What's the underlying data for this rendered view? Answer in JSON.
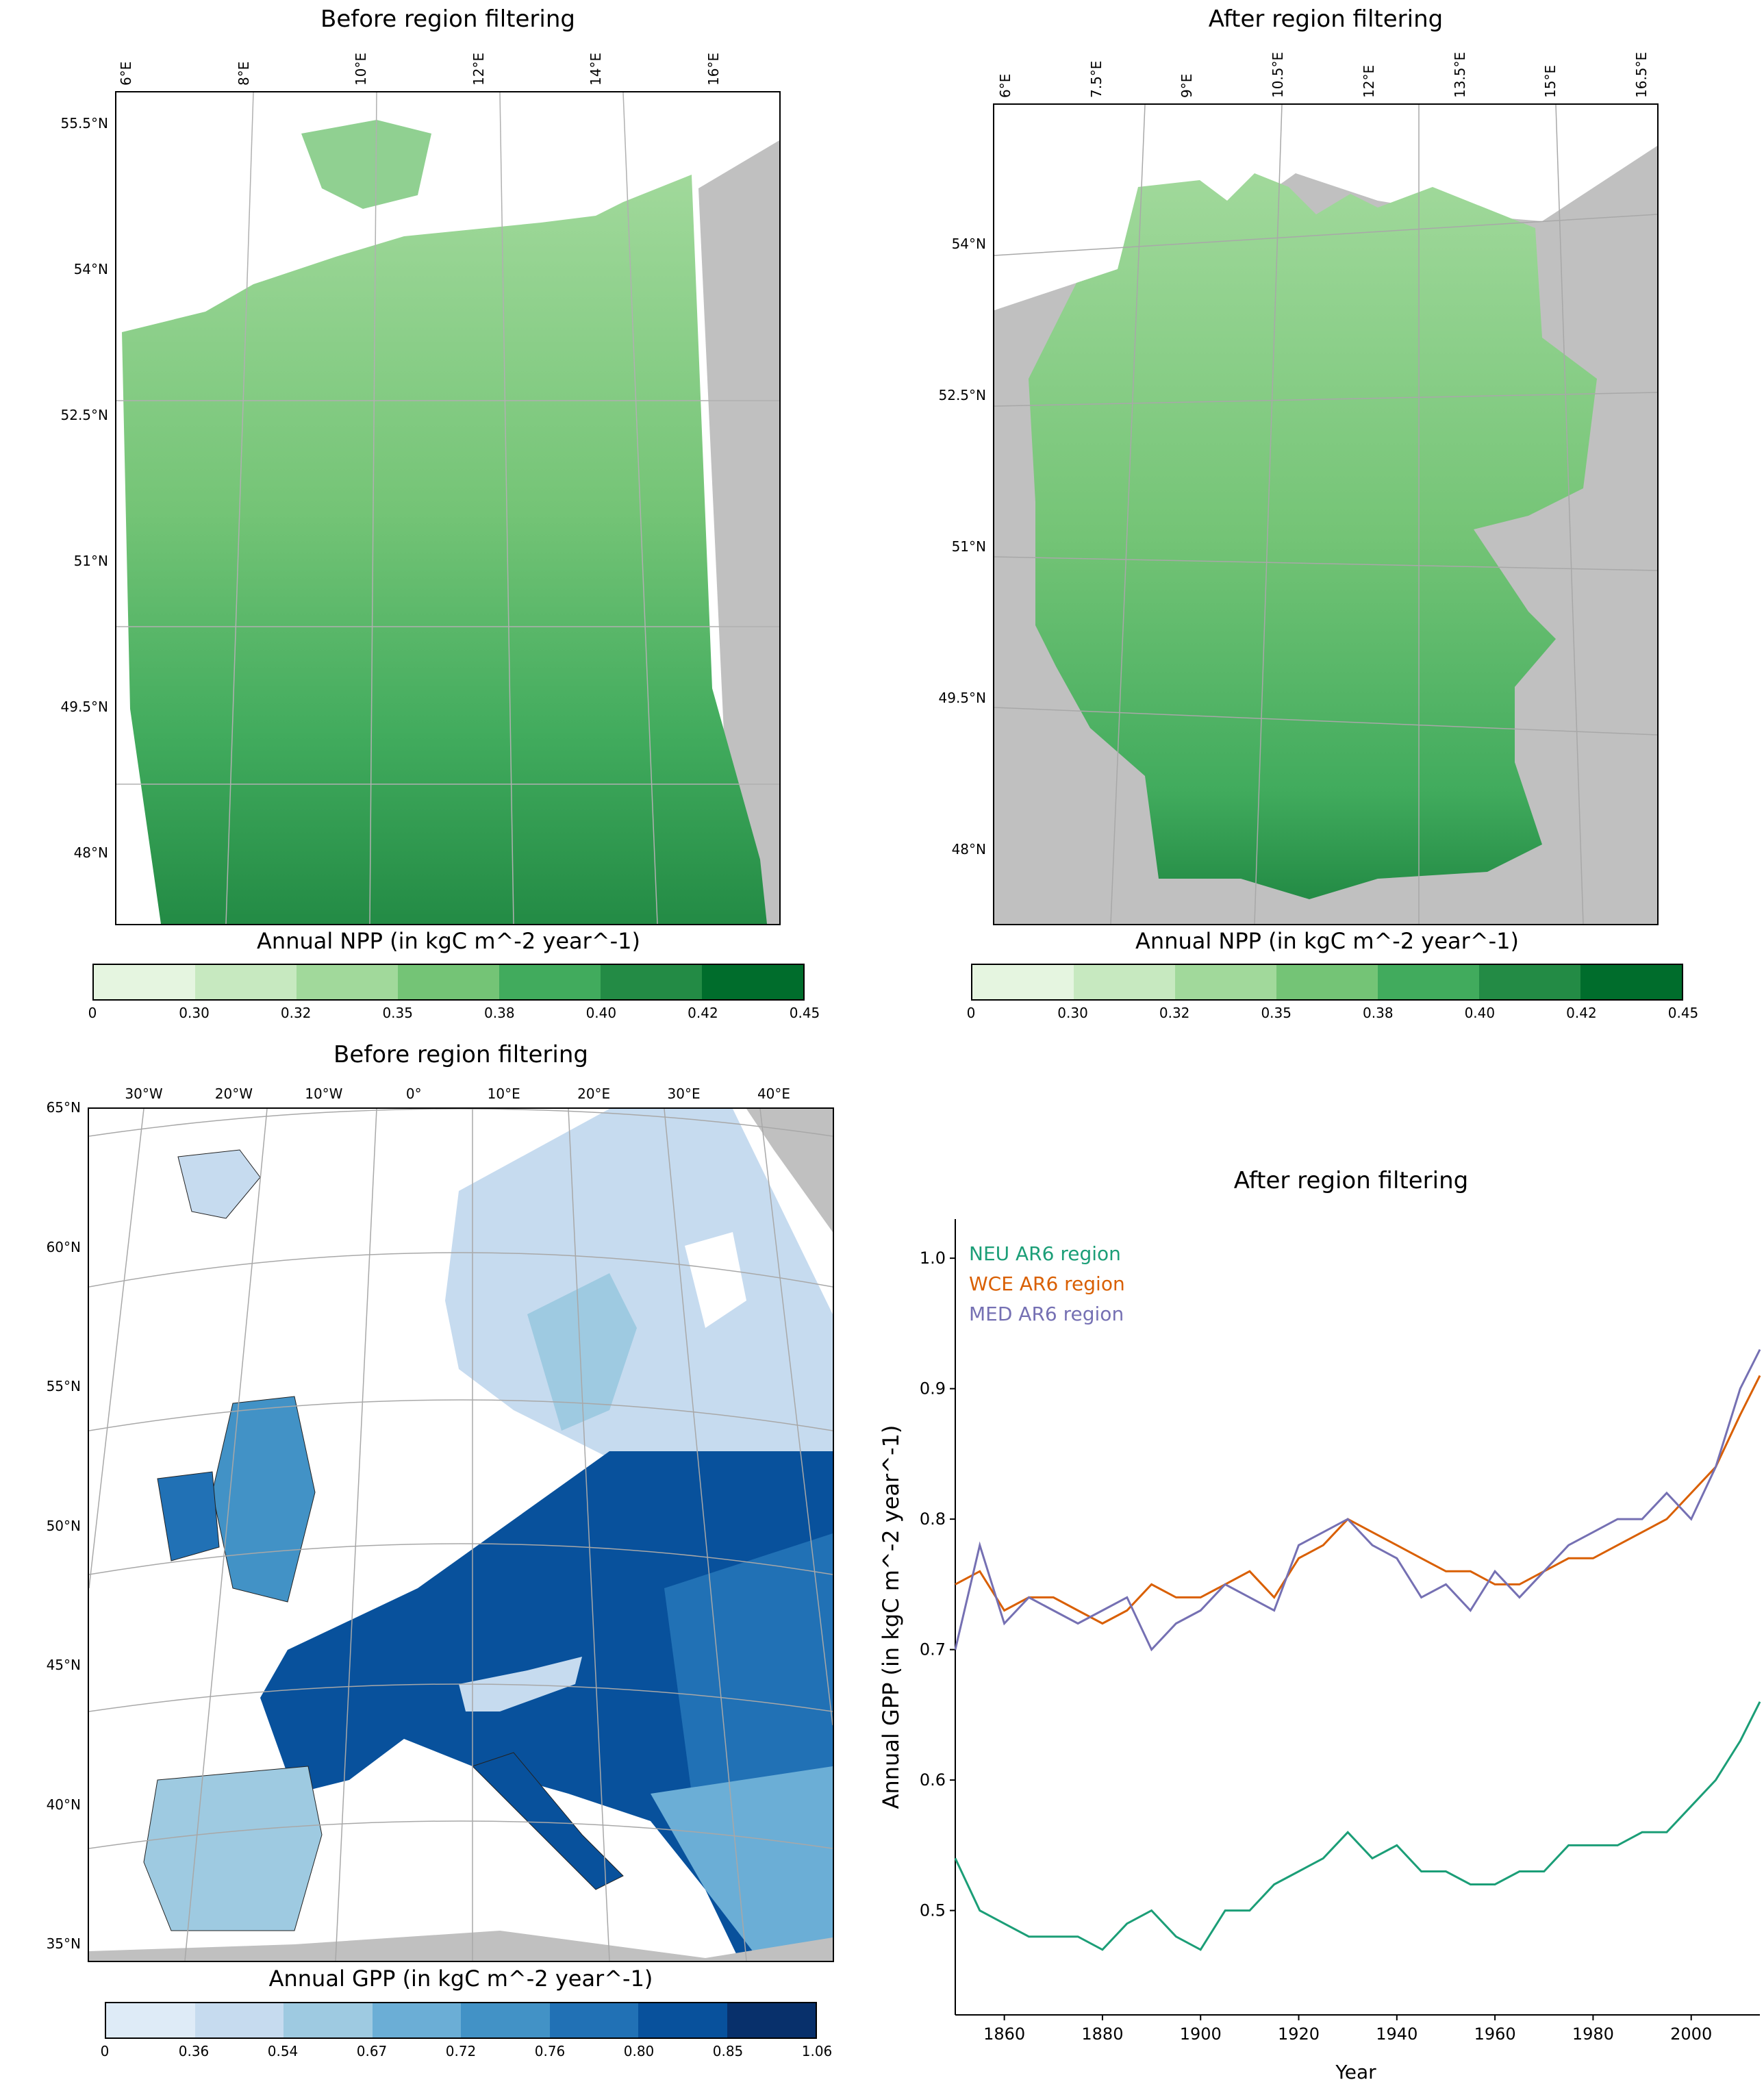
{
  "panels": {
    "top_left": {
      "title": "Before region filtering",
      "lon_ticks": [
        "6°E",
        "8°E",
        "10°E",
        "12°E",
        "14°E",
        "16°E"
      ],
      "lat_ticks": [
        "55.5°N",
        "54°N",
        "52.5°N",
        "51°N",
        "49.5°N",
        "48°N"
      ],
      "colorbar_label": "Annual NPP (in kgC m^-2 year^-1)",
      "colorbar_ticks": [
        "0",
        "0.30",
        "0.32",
        "0.35",
        "0.38",
        "0.40",
        "0.42",
        "0.45"
      ]
    },
    "top_right": {
      "title": "After region filtering",
      "lon_ticks": [
        "6°E",
        "7.5°E",
        "9°E",
        "10.5°E",
        "12°E",
        "13.5°E",
        "15°E",
        "16.5°E"
      ],
      "lat_ticks": [
        "54°N",
        "52.5°N",
        "51°N",
        "49.5°N",
        "48°N"
      ],
      "colorbar_label": "Annual NPP (in kgC m^-2 year^-1)",
      "colorbar_ticks": [
        "0",
        "0.30",
        "0.32",
        "0.35",
        "0.38",
        "0.40",
        "0.42",
        "0.45"
      ]
    },
    "bottom_left": {
      "title": "Before region filtering",
      "lon_ticks": [
        "30°W",
        "20°W",
        "10°W",
        "0°",
        "10°E",
        "20°E",
        "30°E",
        "40°E"
      ],
      "lat_ticks": [
        "65°N",
        "60°N",
        "55°N",
        "50°N",
        "45°N",
        "40°N",
        "35°N"
      ],
      "colorbar_label": "Annual GPP (in kgC m^-2 year^-1)",
      "colorbar_ticks": [
        "0",
        "0.36",
        "0.54",
        "0.67",
        "0.72",
        "0.76",
        "0.80",
        "0.85",
        "1.06"
      ]
    }
  },
  "colors": {
    "npp_scale": [
      "#e5f5e0",
      "#c7e9c0",
      "#a1d99b",
      "#74c476",
      "#41ab5d",
      "#238b45",
      "#006d2c"
    ],
    "gpp_scale": [
      "#deebf7",
      "#c6dbef",
      "#9ecae1",
      "#6baed6",
      "#4292c6",
      "#2171b5",
      "#08519c",
      "#08306b"
    ],
    "land_gray": "#c0c0c0",
    "neu": "#1b9e77",
    "wce": "#d95f02",
    "med": "#7570b3"
  },
  "chart_data": {
    "type": "line",
    "title": "After region filtering",
    "xlabel": "Year",
    "ylabel": "Annual GPP (in kgC m^-2 year^-1)",
    "xlim": [
      1850,
      2014
    ],
    "ylim": [
      0.42,
      1.03
    ],
    "xticks": [
      1860,
      1880,
      1900,
      1920,
      1940,
      1960,
      1980,
      2000
    ],
    "yticks": [
      "0.5",
      "0.6",
      "0.7",
      "0.8",
      "0.9",
      "1.0"
    ],
    "legend_position": "top-left",
    "x": [
      1850,
      1855,
      1860,
      1865,
      1870,
      1875,
      1880,
      1885,
      1890,
      1895,
      1900,
      1905,
      1910,
      1915,
      1920,
      1925,
      1930,
      1935,
      1940,
      1945,
      1950,
      1955,
      1960,
      1965,
      1970,
      1975,
      1980,
      1985,
      1990,
      1995,
      2000,
      2005,
      2010,
      2014
    ],
    "series": [
      {
        "name": "NEU AR6 region",
        "color": "#1b9e77",
        "values": [
          0.54,
          0.5,
          0.49,
          0.48,
          0.48,
          0.48,
          0.47,
          0.49,
          0.5,
          0.48,
          0.47,
          0.5,
          0.5,
          0.52,
          0.53,
          0.54,
          0.56,
          0.54,
          0.55,
          0.53,
          0.53,
          0.52,
          0.52,
          0.53,
          0.53,
          0.55,
          0.55,
          0.55,
          0.56,
          0.56,
          0.58,
          0.6,
          0.63,
          0.66
        ]
      },
      {
        "name": "WCE AR6 region",
        "color": "#d95f02",
        "values": [
          0.75,
          0.76,
          0.73,
          0.74,
          0.74,
          0.73,
          0.72,
          0.73,
          0.75,
          0.74,
          0.74,
          0.75,
          0.76,
          0.74,
          0.77,
          0.78,
          0.8,
          0.79,
          0.78,
          0.77,
          0.76,
          0.76,
          0.75,
          0.75,
          0.76,
          0.77,
          0.77,
          0.78,
          0.79,
          0.8,
          0.82,
          0.84,
          0.88,
          0.91
        ]
      },
      {
        "name": "MED AR6 region",
        "color": "#7570b3",
        "values": [
          0.7,
          0.78,
          0.72,
          0.74,
          0.73,
          0.72,
          0.73,
          0.74,
          0.7,
          0.72,
          0.73,
          0.75,
          0.74,
          0.73,
          0.78,
          0.79,
          0.8,
          0.78,
          0.77,
          0.74,
          0.75,
          0.73,
          0.76,
          0.74,
          0.76,
          0.78,
          0.79,
          0.8,
          0.8,
          0.82,
          0.8,
          0.84,
          0.9,
          0.93
        ]
      }
    ]
  }
}
